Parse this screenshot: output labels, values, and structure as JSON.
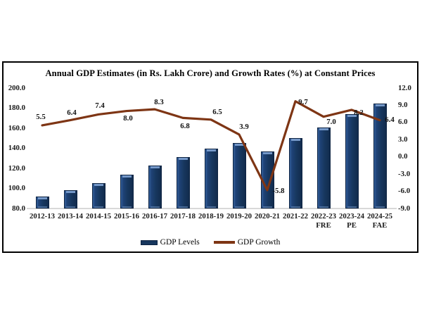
{
  "chart_data": {
    "type": "combo-bar-line",
    "title": "Annual GDP Estimates (in Rs. Lakh Crore) and Growth Rates (%) at Constant Prices",
    "categories": [
      "2012-13",
      "2013-14",
      "2014-15",
      "2015-16",
      "2016-17",
      "2017-18",
      "2018-19",
      "2019-20",
      "2020-21",
      "2021-22",
      "2022-23\nFRE",
      "2023-24\nPE",
      "2024-25\nFAE"
    ],
    "series": [
      {
        "name": "GDP Levels",
        "type": "bar",
        "axis": "left",
        "values": [
          92.1,
          98.0,
          105.3,
          113.7,
          123.1,
          131.4,
          139.9,
          145.3,
          136.9,
          150.2,
          160.7,
          173.8,
          184.9
        ]
      },
      {
        "name": "GDP Growth",
        "type": "line",
        "axis": "right",
        "values": [
          5.5,
          6.4,
          7.4,
          8.0,
          8.3,
          6.8,
          6.5,
          3.9,
          -5.8,
          9.7,
          7.0,
          8.2,
          6.4
        ],
        "labels": [
          "5.5",
          "6.4",
          "7.4",
          "8.0",
          "8.3",
          "6.8",
          "6.5",
          "3.9",
          "-5.8",
          "9.7",
          "7.0",
          "8.2",
          "6.4"
        ],
        "label_offsets": [
          [
            -2,
            -12
          ],
          [
            2,
            -11
          ],
          [
            2,
            -12
          ],
          [
            2,
            10
          ],
          [
            6,
            -10
          ],
          [
            3,
            12
          ],
          [
            9,
            -11
          ],
          [
            7,
            -11
          ],
          [
            16,
            1
          ],
          [
            11,
            1
          ],
          [
            11,
            7
          ],
          [
            10,
            4
          ],
          [
            14,
            -1
          ]
        ]
      }
    ],
    "left_axis": {
      "min": 80,
      "max": 200,
      "ticks": [
        "200.0",
        "180.0",
        "160.0",
        "140.0",
        "120.0",
        "100.0",
        "80.0"
      ]
    },
    "right_axis": {
      "min": -9,
      "max": 12,
      "ticks": [
        "12.0",
        "9.0",
        "6.0",
        "3.0",
        "0.0",
        "-3.0",
        "-6.0",
        "-9.0"
      ]
    },
    "legend_position": "bottom-center",
    "grid": "off",
    "colors": {
      "bar": "#17375E",
      "bar_light": "#3A67A5",
      "line": "#7E3514",
      "axis_line": "#D9D9D9",
      "text": "#000000"
    }
  }
}
